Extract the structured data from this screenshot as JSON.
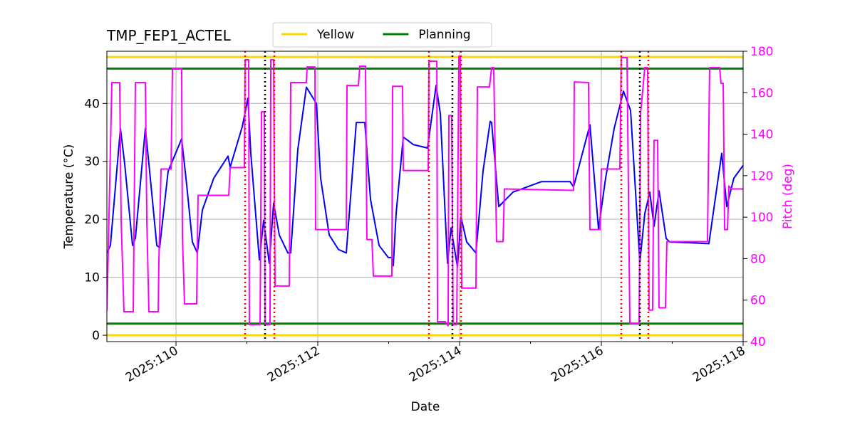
{
  "chart_data": {
    "type": "line",
    "title": "TMP_FEP1_ACTEL",
    "xlabel": "Date",
    "ylabel": "Temperature (°C)",
    "y2label": "Pitch (deg)",
    "xlim": [
      109.025,
      118
    ],
    "xticks": [
      {
        "value": 110,
        "label": "2025:110"
      },
      {
        "value": 112,
        "label": "2025:112"
      },
      {
        "value": 114,
        "label": "2025:114"
      },
      {
        "value": 116,
        "label": "2025:116"
      },
      {
        "value": 118,
        "label": "2025:118"
      }
    ],
    "xticks_minor": [
      111,
      113,
      115,
      117
    ],
    "ylim": [
      -1.1,
      49
    ],
    "yticks": [
      0,
      10,
      20,
      30,
      40
    ],
    "y2lim": [
      40,
      180
    ],
    "y2ticks": [
      40,
      60,
      80,
      100,
      120,
      140,
      160,
      180
    ],
    "grid": true,
    "legend": "upper center",
    "series": [
      {
        "color": "#0000ff",
        "x": [
          109.025,
          109.075,
          109.216,
          109.276,
          109.387,
          109.427,
          109.568,
          109.628,
          109.729,
          109.769,
          109.889,
          110.08,
          110.151,
          110.231,
          110.301,
          110.372,
          110.533,
          110.734,
          110.764,
          110.935,
          111.015,
          111.055,
          111.176,
          111.236,
          111.316,
          111.377,
          111.457,
          111.578,
          111.618,
          111.718,
          111.839,
          111.98,
          112.04,
          112.161,
          112.291,
          112.402,
          112.543,
          112.663,
          112.744,
          112.864,
          112.995,
          113.045,
          113.065,
          113.105,
          113.206,
          113.347,
          113.548,
          113.669,
          113.729,
          113.83,
          113.88,
          113.97,
          114.02,
          114.1,
          114.231,
          114.331,
          114.432,
          114.452,
          114.553,
          114.754,
          115.156,
          115.558,
          115.608,
          115.839,
          115.96,
          116.06,
          116.181,
          116.312,
          116.412,
          116.543,
          116.613,
          116.683,
          116.743,
          116.814,
          116.914,
          116.965,
          117.517,
          117.698,
          117.769,
          117.869,
          118.0
        ],
        "values": [
          14.2,
          15.5,
          35.7,
          29.6,
          15.5,
          16.7,
          35.7,
          28.3,
          15.5,
          15.1,
          28.3,
          33.9,
          25.9,
          16.1,
          14.2,
          21.6,
          27.1,
          30.9,
          29.0,
          36.0,
          40.9,
          31.4,
          13.0,
          19.8,
          12.4,
          22.8,
          17.3,
          14.2,
          14.2,
          32.0,
          42.8,
          40.0,
          27.1,
          17.3,
          14.8,
          14.2,
          36.7,
          36.7,
          23.4,
          15.5,
          13.4,
          13.4,
          12.0,
          21.0,
          34.2,
          32.9,
          32.3,
          43.1,
          38.2,
          12.4,
          18.5,
          11.8,
          20.4,
          16.1,
          14.2,
          28.3,
          36.9,
          36.7,
          22.2,
          24.7,
          26.5,
          26.5,
          25.6,
          36.3,
          18.3,
          27.1,
          35.7,
          42.1,
          38.8,
          12.6,
          21.0,
          24.7,
          18.8,
          24.9,
          16.7,
          16.1,
          15.8,
          31.4,
          22.2,
          27.1,
          29.3
        ]
      },
      {
        "color": "#ff00ff",
        "axis": "y2",
        "x": [
          109.025,
          109.045,
          109.095,
          109.206,
          109.226,
          109.266,
          109.397,
          109.427,
          109.568,
          109.588,
          109.618,
          109.749,
          109.759,
          109.789,
          109.93,
          109.95,
          110.08,
          110.09,
          110.12,
          110.291,
          110.311,
          110.744,
          110.764,
          110.965,
          110.975,
          111.025,
          111.035,
          111.186,
          111.206,
          111.246,
          111.256,
          111.326,
          111.337,
          111.377,
          111.397,
          111.598,
          111.618,
          111.839,
          111.849,
          111.96,
          111.97,
          112.402,
          112.412,
          112.573,
          112.593,
          112.673,
          112.693,
          112.764,
          112.784,
          113.045,
          113.055,
          113.196,
          113.206,
          113.558,
          113.568,
          113.679,
          113.689,
          113.799,
          113.839,
          113.849,
          113.889,
          113.909,
          113.96,
          113.99,
          114.01,
          114.03,
          114.231,
          114.251,
          114.422,
          114.452,
          114.482,
          114.522,
          114.613,
          114.633,
          115.608,
          115.618,
          115.819,
          115.839,
          115.98,
          116.0,
          116.261,
          116.281,
          116.362,
          116.402,
          116.533,
          116.553,
          116.613,
          116.653,
          116.673,
          116.723,
          116.743,
          116.794,
          116.814,
          116.904,
          116.924,
          117.497,
          117.527,
          117.668,
          117.688,
          117.719,
          117.739,
          117.779,
          117.799,
          117.839,
          118.0
        ],
        "values": [
          54.8,
          84.7,
          164.9,
          164.9,
          98.5,
          54.4,
          54.4,
          164.9,
          164.9,
          98.5,
          54.4,
          54.4,
          79.6,
          123.2,
          123.2,
          171.7,
          171.7,
          91.6,
          58.2,
          58.2,
          110.5,
          110.5,
          123.9,
          123.9,
          175.9,
          175.9,
          48.2,
          48.2,
          150.8,
          150.8,
          48.2,
          48.2,
          175.9,
          175.9,
          66.8,
          66.8,
          164.9,
          164.9,
          172.4,
          172.4,
          94.0,
          94.0,
          163.5,
          163.5,
          172.8,
          172.8,
          89.2,
          89.2,
          71.6,
          71.6,
          163.1,
          163.1,
          122.5,
          122.5,
          175.2,
          175.2,
          49.6,
          49.6,
          47.6,
          149.0,
          149.0,
          48.2,
          48.2,
          177.6,
          177.6,
          65.8,
          65.8,
          162.8,
          162.8,
          172.1,
          172.1,
          88.2,
          88.2,
          113.6,
          112.9,
          165.2,
          164.9,
          94.0,
          94.0,
          123.2,
          123.2,
          176.9,
          176.9,
          48.6,
          48.6,
          150.1,
          172.1,
          172.1,
          55.2,
          55.2,
          137.0,
          137.0,
          56.3,
          56.3,
          88.2,
          88.2,
          172.1,
          172.1,
          164.5,
          164.5,
          94.0,
          94.0,
          115.0,
          113.6,
          113.6
        ]
      }
    ],
    "hlines": [
      {
        "name": "Yellow",
        "color": "#ffd700",
        "values": [
          0,
          48
        ]
      },
      {
        "name": "Planning",
        "color": "#008000",
        "values": [
          2,
          46
        ]
      }
    ],
    "vlines": [
      {
        "color": "#ff0000",
        "x": [
          110.975,
          111.387,
          113.568,
          114.02,
          116.281,
          116.663
        ]
      },
      {
        "color": "#000000",
        "x": [
          111.256,
          113.899,
          116.543
        ]
      }
    ]
  }
}
